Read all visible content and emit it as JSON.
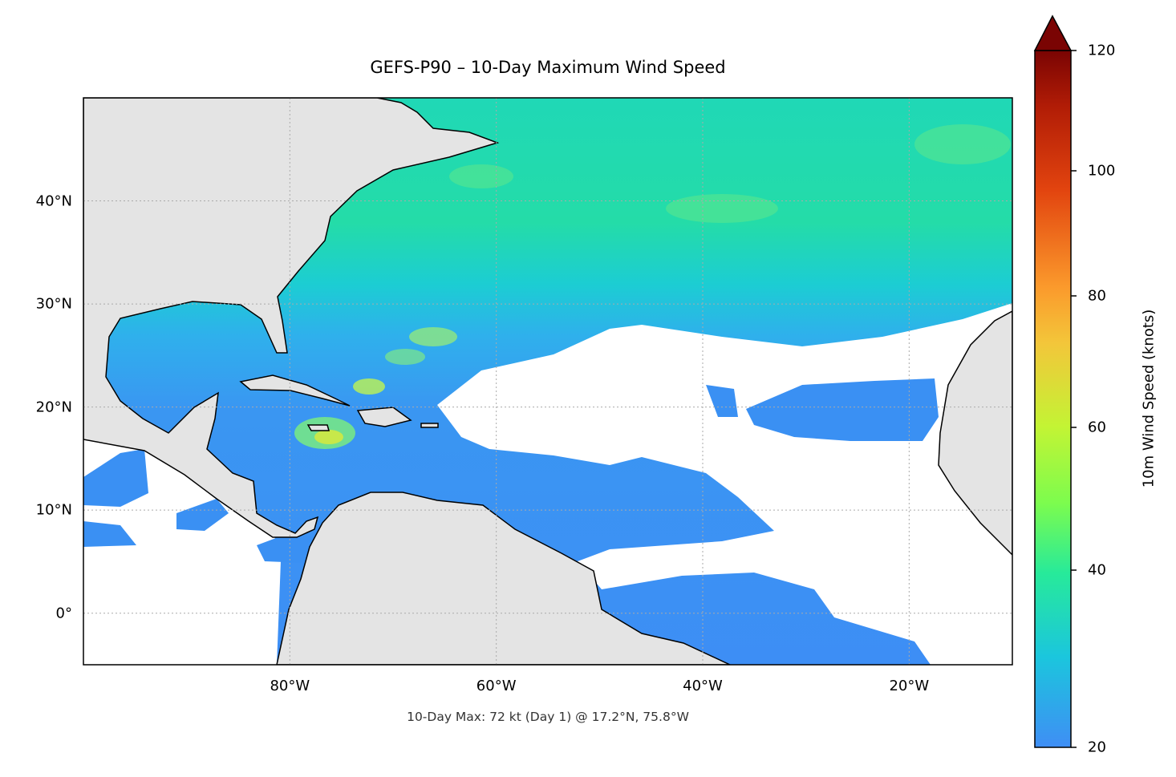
{
  "title": "GEFS-P90 – 10-Day Maximum Wind Speed",
  "footer": "10-Day Max: 72 kt (Day 1) @ 17.2°N, 75.8°W",
  "chart_data": {
    "type": "heatmap",
    "title": "GEFS-P90 – 10-Day Maximum Wind Speed",
    "projection": "PlateCarree map",
    "extent": {
      "lon": [
        -100,
        -10
      ],
      "lat": [
        -5,
        50
      ]
    },
    "lat_ticks": [
      {
        "value": 0,
        "label": "0°"
      },
      {
        "value": 10,
        "label": "10°N"
      },
      {
        "value": 20,
        "label": "20°N"
      },
      {
        "value": 30,
        "label": "30°N"
      },
      {
        "value": 40,
        "label": "40°N"
      }
    ],
    "lon_ticks": [
      {
        "value": -80,
        "label": "80°W"
      },
      {
        "value": -60,
        "label": "60°W"
      },
      {
        "value": -40,
        "label": "40°W"
      },
      {
        "value": -20,
        "label": "20°W"
      }
    ],
    "grid": true,
    "masked_below_kt": 20,
    "max_annotation": {
      "value_kt": 72,
      "day": 1,
      "lat": 17.2,
      "lon": -75.8
    },
    "colorbar": {
      "label": "10m Wind Speed (knots)",
      "range": [
        20,
        120
      ],
      "extend": "max",
      "ticks": [
        {
          "value": 20,
          "label": "20"
        },
        {
          "value": 40,
          "label": "40"
        },
        {
          "value": 60,
          "label": "60"
        },
        {
          "value": 80,
          "label": "80"
        },
        {
          "value": 100,
          "label": "100"
        },
        {
          "value": 120,
          "label": "120"
        }
      ],
      "colormap": [
        "#3f8ef5",
        "#1bd0d5",
        "#27ea9a",
        "#a4fc3c",
        "#e0d93a",
        "#fba834",
        "#f06a1c",
        "#c9290a",
        "#7a0403"
      ]
    },
    "colors": {
      "land": "#e4e4e4",
      "coast": "#000000",
      "borders": "#6e6e6e",
      "ocean_no_data": "#ffffff"
    }
  }
}
